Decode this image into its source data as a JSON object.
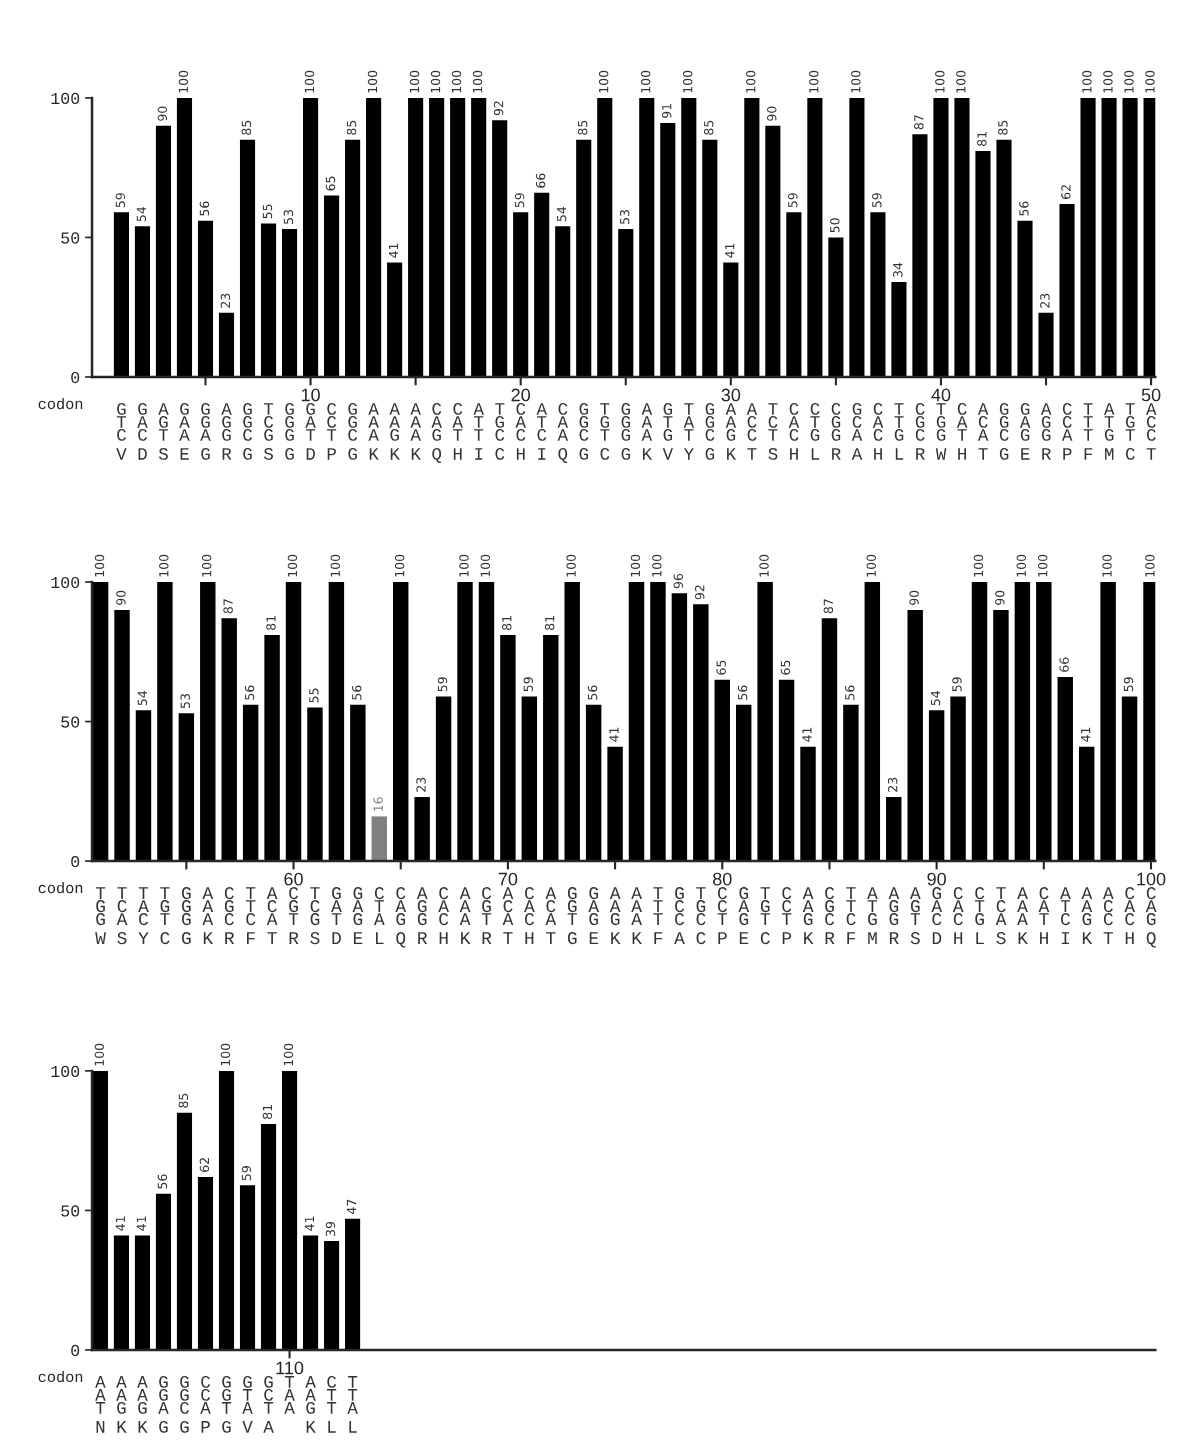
{
  "chart_data": [
    {
      "type": "bar",
      "x": [
        1,
        2,
        3,
        4,
        5,
        6,
        7,
        8,
        9,
        10,
        11,
        12,
        13,
        14,
        15,
        16,
        17,
        18,
        19,
        20,
        21,
        22,
        23,
        24,
        25,
        26,
        27,
        28,
        29,
        30,
        31,
        32,
        33,
        34,
        35,
        36,
        37,
        38,
        39,
        40,
        41,
        42,
        43,
        44,
        45,
        46,
        47,
        48,
        49,
        50
      ],
      "values": [
        59,
        54,
        90,
        100,
        56,
        23,
        85,
        55,
        53,
        100,
        65,
        85,
        100,
        41,
        100,
        100,
        100,
        100,
        92,
        59,
        66,
        54,
        85,
        100,
        53,
        100,
        91,
        100,
        85,
        41,
        100,
        90,
        59,
        100,
        50,
        100,
        59,
        34,
        87,
        100,
        100,
        81,
        85,
        56,
        23,
        62,
        100,
        100,
        100,
        100
      ],
      "color": "#000000",
      "data_labels": true,
      "xlabel": "codon",
      "xlim": [
        -0.4,
        50.2
      ],
      "xticks": [
        {
          "value": 5,
          "label": null
        },
        10,
        {
          "value": 15,
          "label": null
        },
        20,
        {
          "value": 25,
          "label": null
        },
        30,
        {
          "value": 35,
          "label": null
        },
        40,
        {
          "value": 45,
          "label": null
        },
        50
      ],
      "ylim": [
        0,
        100
      ],
      "yticks": [
        0,
        50,
        100
      ],
      "annotations": [
        "G G A G G A G T G G C G A A A C C A T C A C G T G A G T G A A T C C C G C T C T C A G G A C T A T A",
        "T A G A G G G C G A C G A A A A A T G A T A G G G A T A G A C C A T G C A T G G A C G A G C T T G C",
        "C C T A A G C G G T T C A G A G T T C C C A C T G A G T C G C T C G G A C G C G T A C G G A T G T C",
        "V D S E G R G S G D P G K K K Q H I C H I Q G C G K V Y G K T S H L R A H L R W H T G E R P F M C T"
      ]
    },
    {
      "type": "bar",
      "x": [
        51,
        52,
        53,
        54,
        55,
        56,
        57,
        58,
        59,
        60,
        61,
        62,
        63,
        64,
        65,
        66,
        67,
        68,
        69,
        70,
        71,
        72,
        73,
        74,
        75,
        76,
        77,
        78,
        79,
        80,
        81,
        82,
        83,
        84,
        85,
        86,
        87,
        88,
        89,
        90,
        91,
        92,
        93,
        94,
        95,
        96,
        97,
        98,
        99,
        100
      ],
      "values": [
        100,
        90,
        54,
        100,
        53,
        100,
        87,
        56,
        81,
        100,
        55,
        100,
        56,
        16,
        100,
        23,
        59,
        100,
        100,
        81,
        59,
        81,
        100,
        56,
        41,
        100,
        100,
        96,
        92,
        65,
        56,
        100,
        65,
        41,
        87,
        56,
        100,
        23,
        90,
        54,
        59,
        100,
        90,
        100,
        100,
        66,
        41,
        100,
        59,
        100
      ],
      "colors": [
        "#000000",
        "#000000",
        "#000000",
        "#000000",
        "#000000",
        "#000000",
        "#000000",
        "#000000",
        "#000000",
        "#000000",
        "#000000",
        "#000000",
        "#000000",
        "#808080",
        "#000000",
        "#000000",
        "#000000",
        "#000000",
        "#000000",
        "#000000",
        "#000000",
        "#000000",
        "#000000",
        "#000000",
        "#000000",
        "#000000",
        "#000000",
        "#000000",
        "#000000",
        "#000000",
        "#000000",
        "#000000",
        "#000000",
        "#000000",
        "#000000",
        "#000000",
        "#000000",
        "#000000",
        "#000000",
        "#000000",
        "#000000",
        "#000000",
        "#000000",
        "#000000",
        "#000000",
        "#000000",
        "#000000",
        "#000000",
        "#000000",
        "#000000"
      ],
      "data_labels": true,
      "xlabel": "codon",
      "xlim": [
        50.6,
        100.2
      ],
      "xticks": [
        {
          "value": 55,
          "label": null
        },
        60,
        {
          "value": 65,
          "label": null
        },
        70,
        {
          "value": 75,
          "label": null
        },
        80,
        {
          "value": 85,
          "label": null
        },
        90,
        {
          "value": 95,
          "label": null
        },
        100
      ],
      "ylim": [
        0,
        100
      ],
      "yticks": [
        0,
        50,
        100
      ],
      "annotations": [
        "T T T T G A C T A C T G G C C A C A C A C A G G A A T G T C G T C A C T A A A G C C T A C A A A C C",
        "G C A G G A G T C G C A A T A G A A G C A C G A A A T C G C A G C A G T T G G A A T C A A T A C A A",
        "G A C T G A C C A T G T G A G G C A T A C A T G G A T C C T G T T G C C G G T C C G A A T C G C C G",
        "W S Y C G K R F T R S D E L Q R H K R T H T G E K K F A C P E C P K R F M R S D H L S K H I K T H Q"
      ]
    },
    {
      "type": "bar",
      "categories": [
        null,
        null,
        null,
        null,
        null,
        null,
        null,
        null,
        null,
        "110",
        null,
        null,
        null
      ],
      "values": [
        100,
        41,
        41,
        56,
        85,
        62,
        100,
        59,
        81,
        100,
        41,
        39,
        47
      ],
      "color": "#000000",
      "data_labels": true,
      "xlabel": "codon",
      "ylim": [
        0,
        100
      ],
      "yticks": [
        0,
        50,
        100
      ],
      "annotations": [
        "A A A G G C G G G T A C T",
        "A A A G G C G T C A A T T",
        "T G G A C A T A T A G T A",
        "N K K G G P G V A   K L L"
      ]
    }
  ]
}
